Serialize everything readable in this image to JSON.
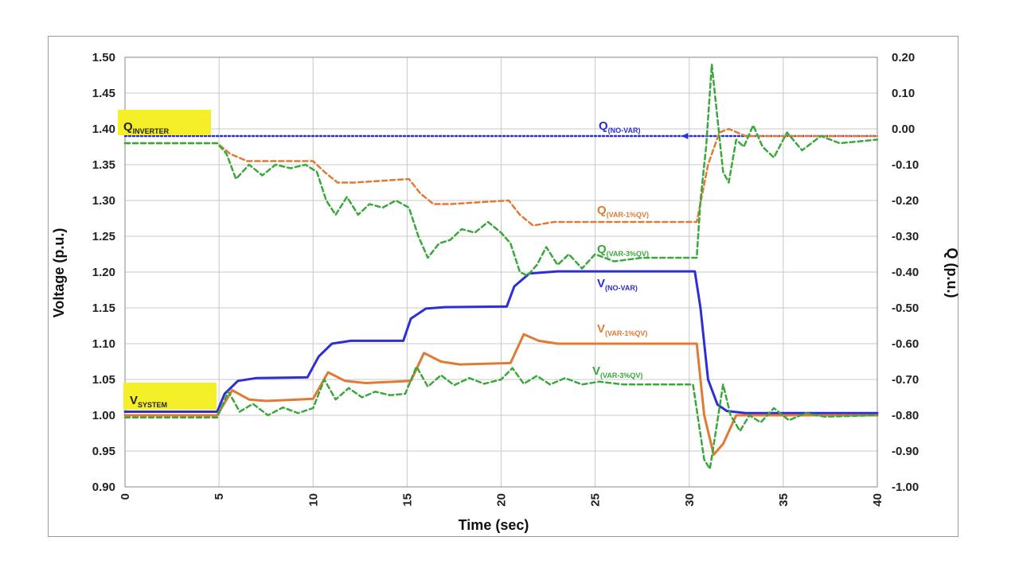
{
  "chart_data": {
    "type": "line",
    "xlabel": "Time (sec)",
    "ylabel": "Voltage (p.u.)",
    "y2label": "Q (p.u.)",
    "xlim": [
      0,
      40
    ],
    "ylim": [
      0.9,
      1.5
    ],
    "y2lim": [
      -1.0,
      0.2
    ],
    "grid": true,
    "x_ticks": [
      "0",
      "5",
      "10",
      "15",
      "20",
      "25",
      "30",
      "35",
      "40"
    ],
    "y_ticks": [
      "0.90",
      "0.95",
      "1.00",
      "1.05",
      "1.10",
      "1.15",
      "1.20",
      "1.25",
      "1.30",
      "1.35",
      "1.40",
      "1.45",
      "1.50"
    ],
    "y2_ticks": [
      "-1.00",
      "-0.90",
      "-0.80",
      "-0.70",
      "-0.60",
      "-0.50",
      "-0.40",
      "-0.30",
      "-0.20",
      "-0.10",
      "0.00",
      "0.10",
      "0.20"
    ],
    "series": [
      {
        "name": "V(NO-VAR)",
        "axis": "left",
        "color": "#2e2ed6",
        "style": "solid",
        "x": [
          0,
          4.9,
          5.3,
          6,
          7,
          9.7,
          10.3,
          11,
          12,
          14.8,
          15.2,
          16,
          17,
          20.3,
          20.7,
          21.5,
          23,
          30.3,
          30.6,
          31.0,
          31.5,
          32.0,
          33,
          40
        ],
        "y": [
          1.005,
          1.005,
          1.03,
          1.048,
          1.052,
          1.053,
          1.082,
          1.1,
          1.104,
          1.104,
          1.135,
          1.149,
          1.151,
          1.152,
          1.18,
          1.198,
          1.201,
          1.201,
          1.15,
          1.05,
          1.015,
          1.006,
          1.003,
          1.003
        ]
      },
      {
        "name": "V(VAR-1%QV)",
        "axis": "left",
        "color": "#e07a34",
        "style": "solid",
        "x": [
          0,
          4.9,
          5.7,
          6.6,
          7.5,
          10.0,
          10.8,
          11.7,
          12.8,
          15.2,
          15.9,
          16.8,
          17.8,
          20.5,
          21.2,
          22.0,
          23,
          30.4,
          30.8,
          31.3,
          31.8,
          32.5,
          40
        ],
        "y": [
          1.0,
          1.0,
          1.035,
          1.022,
          1.02,
          1.023,
          1.06,
          1.048,
          1.045,
          1.048,
          1.087,
          1.075,
          1.071,
          1.073,
          1.113,
          1.104,
          1.1,
          1.1,
          1.0,
          0.945,
          0.96,
          1.0,
          1.0
        ]
      },
      {
        "name": "V(VAR-3%QV)",
        "axis": "left",
        "color": "#3aa83a",
        "style": "dashed",
        "x": [
          0,
          4.9,
          5.5,
          6.1,
          6.8,
          7.6,
          8.4,
          9.2,
          10.0,
          10.6,
          11.2,
          11.9,
          12.6,
          13.3,
          14.1,
          14.9,
          15.5,
          16.1,
          16.8,
          17.5,
          18.3,
          19.1,
          20.0,
          20.6,
          21.2,
          21.9,
          22.6,
          23.4,
          24.3,
          25.2,
          26.5,
          28,
          30.2,
          30.5,
          30.8,
          31.1,
          31.4,
          31.8,
          32.2,
          32.7,
          33.2,
          33.8,
          34.5,
          35.3,
          36.2,
          37.2,
          40
        ],
        "y": [
          0.997,
          0.997,
          1.033,
          1.005,
          1.016,
          1.0,
          1.011,
          1.003,
          1.01,
          1.05,
          1.022,
          1.038,
          1.025,
          1.033,
          1.028,
          1.03,
          1.068,
          1.04,
          1.056,
          1.042,
          1.052,
          1.044,
          1.05,
          1.066,
          1.044,
          1.055,
          1.043,
          1.052,
          1.043,
          1.047,
          1.043,
          1.043,
          1.043,
          0.99,
          0.938,
          0.925,
          0.975,
          1.043,
          1.0,
          0.978,
          1.0,
          0.99,
          1.01,
          0.993,
          1.003,
          0.998,
          1.0
        ]
      },
      {
        "name": "Q(NO-VAR)",
        "axis": "right",
        "color": "#2e2ed6",
        "style": "dotted",
        "x": [
          0,
          30.5,
          40
        ],
        "y": [
          -0.02,
          -0.02,
          -0.02
        ]
      },
      {
        "name": "Q(VAR-1%QV)",
        "axis": "right",
        "color": "#e07a34",
        "style": "dashed",
        "x": [
          0,
          4.9,
          5.6,
          6.5,
          7.5,
          10.0,
          10.6,
          11.3,
          12.2,
          15.1,
          15.7,
          16.4,
          17.3,
          20.4,
          21.0,
          21.7,
          22.8,
          30.4,
          31.0,
          31.6,
          32.1,
          33,
          40
        ],
        "y": [
          -0.04,
          -0.04,
          -0.07,
          -0.09,
          -0.09,
          -0.09,
          -0.12,
          -0.15,
          -0.15,
          -0.14,
          -0.18,
          -0.21,
          -0.21,
          -0.2,
          -0.24,
          -0.27,
          -0.26,
          -0.26,
          -0.1,
          -0.01,
          0.0,
          -0.02,
          -0.02
        ]
      },
      {
        "name": "Q(VAR-3%QV)",
        "axis": "right",
        "color": "#3aa83a",
        "style": "dashed",
        "x": [
          0,
          4.9,
          5.4,
          5.9,
          6.6,
          7.3,
          8.0,
          8.8,
          9.6,
          10.2,
          10.7,
          11.2,
          11.8,
          12.4,
          13.0,
          13.7,
          14.4,
          15.1,
          15.6,
          16.1,
          16.7,
          17.3,
          17.9,
          18.6,
          19.3,
          20.0,
          20.5,
          21.0,
          21.4,
          21.9,
          22.4,
          23.0,
          23.6,
          24.3,
          25.0,
          26.0,
          27.5,
          30.4,
          30.6,
          30.9,
          31.2,
          31.5,
          31.8,
          32.1,
          32.5,
          32.9,
          33.4,
          33.9,
          34.5,
          35.2,
          36.0,
          37.0,
          38.0,
          40
        ],
        "y": [
          -0.04,
          -0.04,
          -0.07,
          -0.14,
          -0.1,
          -0.13,
          -0.1,
          -0.11,
          -0.1,
          -0.12,
          -0.2,
          -0.24,
          -0.19,
          -0.24,
          -0.21,
          -0.22,
          -0.2,
          -0.22,
          -0.3,
          -0.36,
          -0.32,
          -0.31,
          -0.28,
          -0.29,
          -0.26,
          -0.29,
          -0.32,
          -0.4,
          -0.41,
          -0.38,
          -0.33,
          -0.38,
          -0.35,
          -0.39,
          -0.35,
          -0.37,
          -0.36,
          -0.36,
          -0.2,
          -0.05,
          0.18,
          0.03,
          -0.12,
          -0.15,
          -0.03,
          -0.05,
          0.01,
          -0.05,
          -0.08,
          -0.01,
          -0.06,
          -0.02,
          -0.04,
          -0.03
        ]
      }
    ],
    "annotations": [
      {
        "id": "q_inverter",
        "main": "Q",
        "sub": "INVERTER",
        "color": "#222222",
        "highlight": "#f5ef2a"
      },
      {
        "id": "v_system",
        "main": "V",
        "sub": "SYSTEM",
        "color": "#222222",
        "highlight": "#f5ef2a"
      },
      {
        "id": "q_novar",
        "main": "Q",
        "sub": "(NO-VAR)",
        "color": "#2e2ed6"
      },
      {
        "id": "q_var1",
        "main": "Q",
        "sub": "(VAR-1%QV)",
        "color": "#e07a34"
      },
      {
        "id": "q_var3",
        "main": "Q",
        "sub": "(VAR-3%QV)",
        "color": "#3aa83a"
      },
      {
        "id": "v_novar",
        "main": "V",
        "sub": "(NO-VAR)",
        "color": "#2e2ed6"
      },
      {
        "id": "v_var1",
        "main": "V",
        "sub": "(VAR-1%QV)",
        "color": "#e07a34"
      },
      {
        "id": "v_var3",
        "main": "V",
        "sub": "(VAR-3%QV)",
        "color": "#3aa83a"
      }
    ]
  }
}
